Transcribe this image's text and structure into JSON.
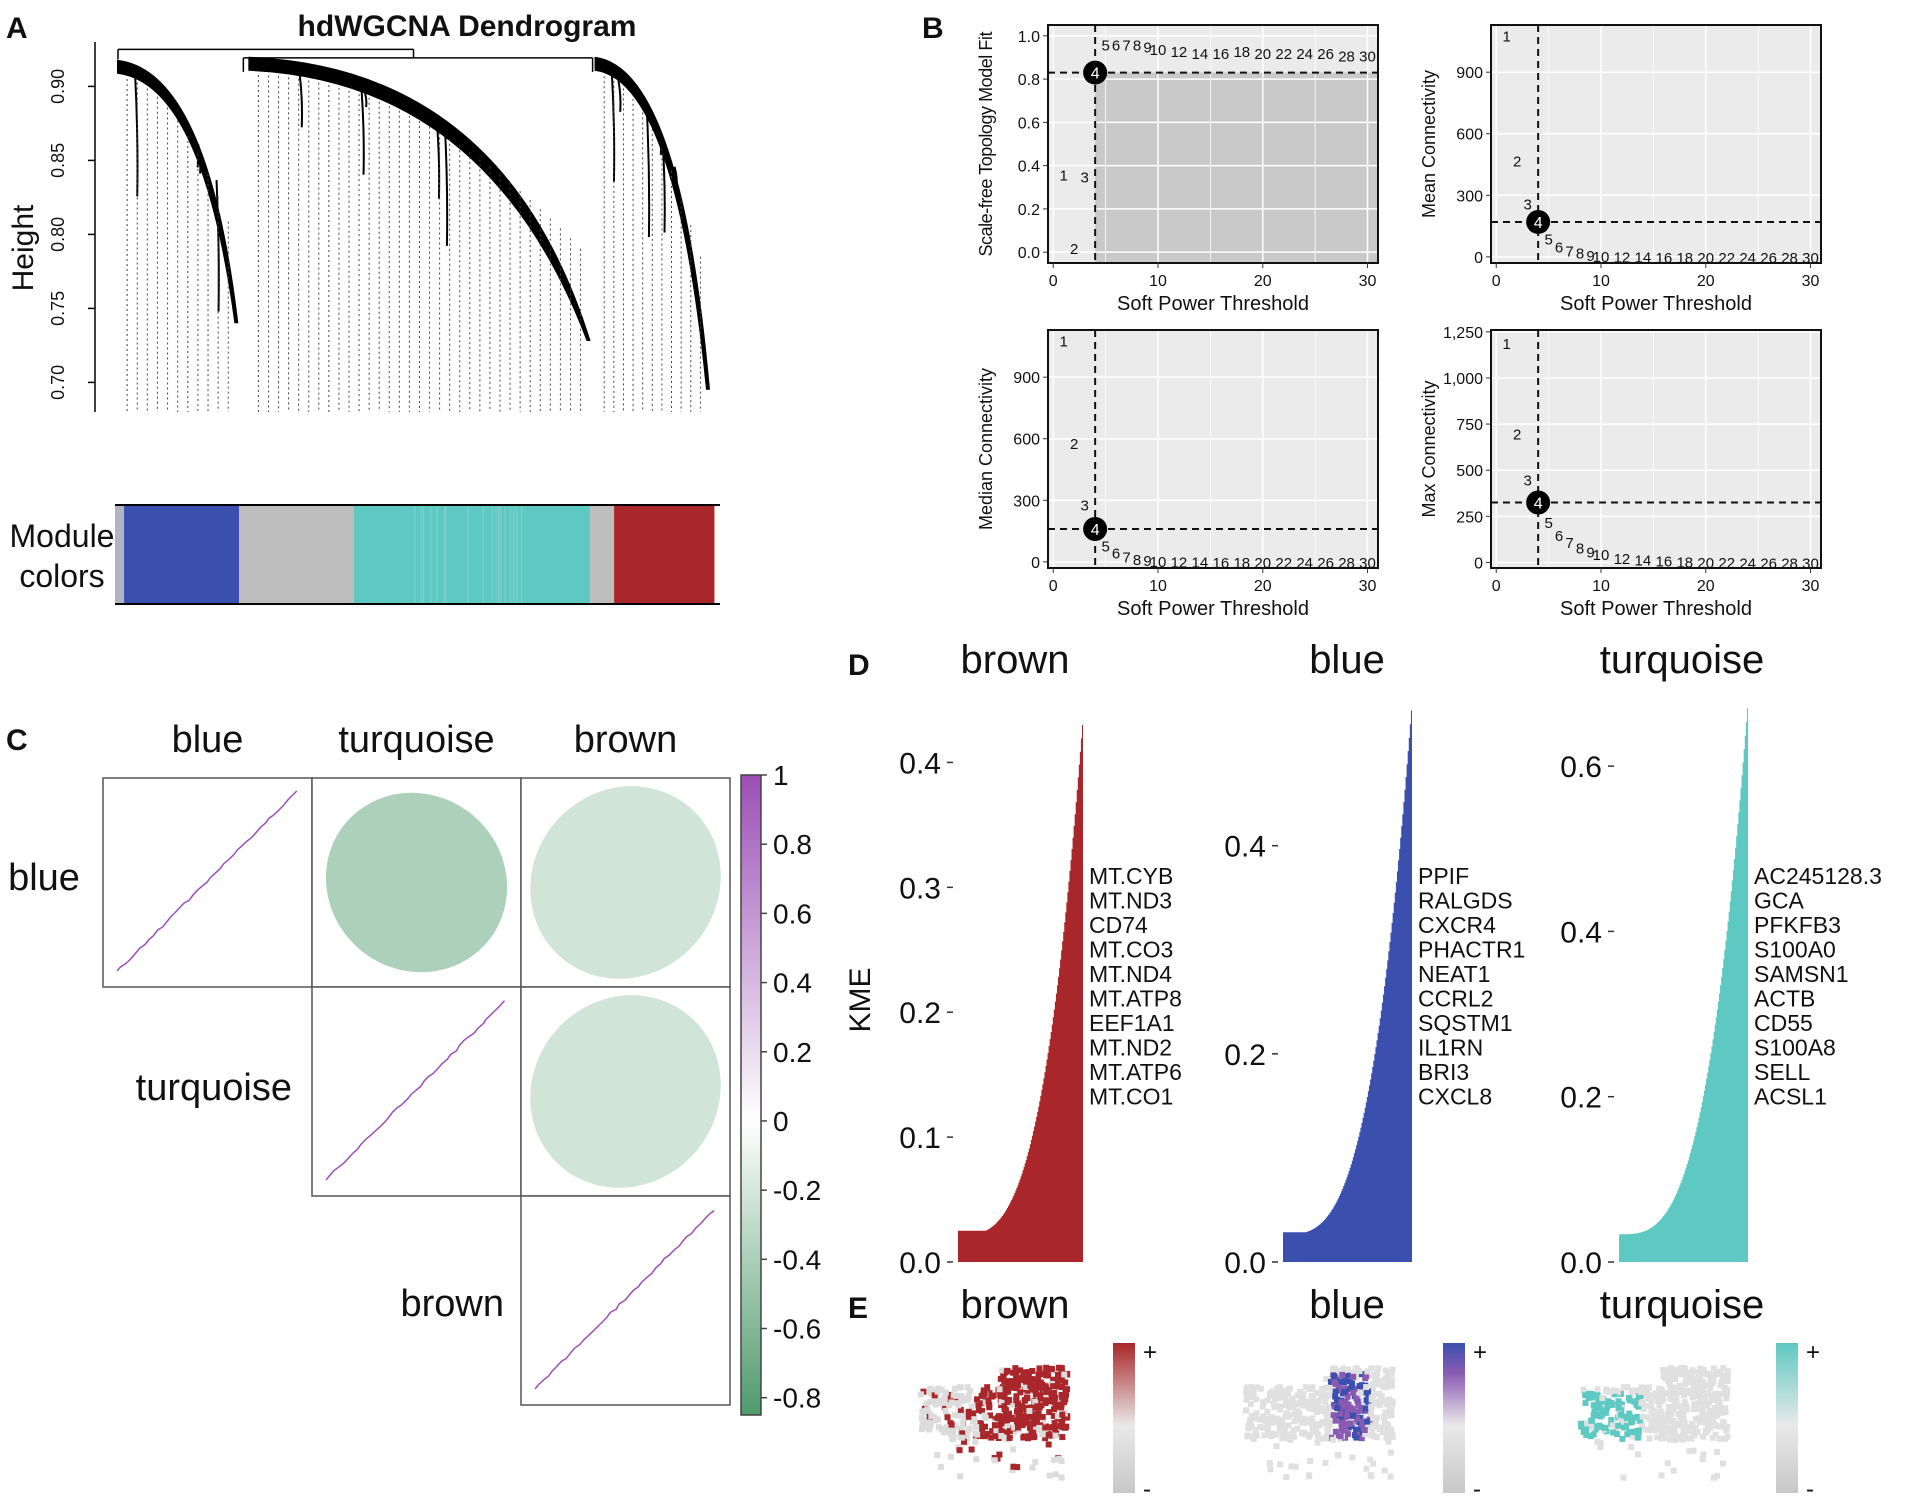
{
  "figure_caption": "",
  "chart_data": [
    {
      "panel": "A",
      "type": "dendrogram",
      "title": "hdWGCNA Dendrogram",
      "ylabel": "Height",
      "yticks": [
        "0.90",
        "0.85",
        "0.80",
        "0.75",
        "0.70"
      ],
      "ytick_values": [
        0.9,
        0.85,
        0.8,
        0.75,
        0.7
      ],
      "ylim": [
        0.68,
        0.93
      ],
      "color_bar_label_line1": "Module",
      "color_bar_label_line2": "colors",
      "module_segments": [
        {
          "color": "#b3b3c4",
          "fraction": 0.015
        },
        {
          "color": "#3a4fae",
          "fraction": 0.19
        },
        {
          "color": "#bebebe",
          "fraction": 0.19
        },
        {
          "color": "#5ec9c2",
          "fraction": 0.39
        },
        {
          "color": "#bebebe",
          "fraction": 0.04
        },
        {
          "color": "#a9272a",
          "fraction": 0.165
        }
      ],
      "clusters": [
        {
          "start": 0.0,
          "end": 0.21,
          "top": 0.918,
          "bottom": 0.74
        },
        {
          "start": 0.22,
          "end": 0.8,
          "top": 0.92,
          "bottom": 0.728
        },
        {
          "start": 0.8,
          "end": 1.0,
          "top": 0.92,
          "bottom": 0.695
        }
      ]
    },
    {
      "panel": "B",
      "type": "scatter-grid",
      "xlabel": "Soft Power Threshold",
      "xticks": [
        "0",
        "10",
        "20",
        "30"
      ],
      "xlim": [
        -0.5,
        31
      ],
      "selected_power": "4",
      "subplots": [
        {
          "ylabel": "Scale-free Topology Model Fit",
          "ylim": [
            -0.05,
            1.05
          ],
          "yticks": [
            "0.0",
            "0.2",
            "0.4",
            "0.6",
            "0.8",
            "1.0"
          ],
          "ytick_values": [
            0,
            0.2,
            0.4,
            0.6,
            0.8,
            1.0
          ],
          "hline": 0.83,
          "shade_below": 0.83,
          "points": [
            {
              "label": "1",
              "x": 1,
              "y": 0.36
            },
            {
              "label": "2",
              "x": 2,
              "y": 0.02
            },
            {
              "label": "3",
              "x": 3,
              "y": 0.35
            },
            {
              "label": "4",
              "x": 4,
              "y": 0.83
            },
            {
              "label": "5",
              "x": 5,
              "y": 0.96
            },
            {
              "label": "6",
              "x": 6,
              "y": 0.96
            },
            {
              "label": "7",
              "x": 7,
              "y": 0.96
            },
            {
              "label": "8",
              "x": 8,
              "y": 0.96
            },
            {
              "label": "9",
              "x": 9,
              "y": 0.95
            },
            {
              "label": "10",
              "x": 10,
              "y": 0.94
            },
            {
              "label": "12",
              "x": 12,
              "y": 0.93
            },
            {
              "label": "14",
              "x": 14,
              "y": 0.92
            },
            {
              "label": "16",
              "x": 16,
              "y": 0.92
            },
            {
              "label": "18",
              "x": 18,
              "y": 0.93
            },
            {
              "label": "20",
              "x": 20,
              "y": 0.92
            },
            {
              "label": "22",
              "x": 22,
              "y": 0.92
            },
            {
              "label": "24",
              "x": 24,
              "y": 0.92
            },
            {
              "label": "26",
              "x": 26,
              "y": 0.92
            },
            {
              "label": "28",
              "x": 28,
              "y": 0.91
            },
            {
              "label": "30",
              "x": 30,
              "y": 0.91
            }
          ]
        },
        {
          "ylabel": "Mean Connectivity",
          "ylim": [
            -30,
            1130
          ],
          "yticks": [
            "0",
            "300",
            "600",
            "900"
          ],
          "ytick_values": [
            0,
            300,
            600,
            900
          ],
          "hline": 170,
          "points": [
            {
              "label": "1",
              "x": 1,
              "y": 1080
            },
            {
              "label": "2",
              "x": 2,
              "y": 470
            },
            {
              "label": "3",
              "x": 3,
              "y": 260
            },
            {
              "label": "4",
              "x": 4,
              "y": 170
            },
            {
              "label": "5",
              "x": 5,
              "y": 90
            },
            {
              "label": "6",
              "x": 6,
              "y": 50
            },
            {
              "label": "7",
              "x": 7,
              "y": 30
            },
            {
              "label": "8",
              "x": 8,
              "y": 20
            },
            {
              "label": "9",
              "x": 9,
              "y": 10
            },
            {
              "label": "10",
              "x": 10,
              "y": 5
            },
            {
              "label": "12",
              "x": 12,
              "y": 2
            },
            {
              "label": "14",
              "x": 14,
              "y": 1
            },
            {
              "label": "16",
              "x": 16,
              "y": 0
            },
            {
              "label": "18",
              "x": 18,
              "y": 0
            },
            {
              "label": "20",
              "x": 20,
              "y": 0
            },
            {
              "label": "22",
              "x": 22,
              "y": 0
            },
            {
              "label": "24",
              "x": 24,
              "y": 0
            },
            {
              "label": "26",
              "x": 26,
              "y": 0
            },
            {
              "label": "28",
              "x": 28,
              "y": 0
            },
            {
              "label": "30",
              "x": 30,
              "y": 0
            }
          ]
        },
        {
          "ylabel": "Median Connectivity",
          "ylim": [
            -30,
            1130
          ],
          "yticks": [
            "0",
            "300",
            "600",
            "900"
          ],
          "ytick_values": [
            0,
            300,
            600,
            900
          ],
          "hline": 160,
          "points": [
            {
              "label": "1",
              "x": 1,
              "y": 1080
            },
            {
              "label": "2",
              "x": 2,
              "y": 580
            },
            {
              "label": "3",
              "x": 3,
              "y": 280
            },
            {
              "label": "4",
              "x": 4,
              "y": 160
            },
            {
              "label": "5",
              "x": 5,
              "y": 80
            },
            {
              "label": "6",
              "x": 6,
              "y": 45
            },
            {
              "label": "7",
              "x": 7,
              "y": 25
            },
            {
              "label": "8",
              "x": 8,
              "y": 15
            },
            {
              "label": "9",
              "x": 9,
              "y": 8
            },
            {
              "label": "10",
              "x": 10,
              "y": 4
            },
            {
              "label": "12",
              "x": 12,
              "y": 2
            },
            {
              "label": "14",
              "x": 14,
              "y": 1
            },
            {
              "label": "16",
              "x": 16,
              "y": 0
            },
            {
              "label": "18",
              "x": 18,
              "y": 0
            },
            {
              "label": "20",
              "x": 20,
              "y": 0
            },
            {
              "label": "22",
              "x": 22,
              "y": 0
            },
            {
              "label": "24",
              "x": 24,
              "y": 0
            },
            {
              "label": "26",
              "x": 26,
              "y": 0
            },
            {
              "label": "28",
              "x": 28,
              "y": 0
            },
            {
              "label": "30",
              "x": 30,
              "y": 0
            }
          ]
        },
        {
          "ylabel": "Max Connectivity",
          "ylim": [
            -30,
            1260
          ],
          "yticks": [
            "0",
            "250",
            "500",
            "750",
            "1,000",
            "1,250"
          ],
          "ytick_values": [
            0,
            250,
            500,
            750,
            1000,
            1250
          ],
          "hline": 325,
          "points": [
            {
              "label": "1",
              "x": 1,
              "y": 1190
            },
            {
              "label": "2",
              "x": 2,
              "y": 700
            },
            {
              "label": "3",
              "x": 3,
              "y": 450
            },
            {
              "label": "4",
              "x": 4,
              "y": 325
            },
            {
              "label": "5",
              "x": 5,
              "y": 220
            },
            {
              "label": "6",
              "x": 6,
              "y": 150
            },
            {
              "label": "7",
              "x": 7,
              "y": 110
            },
            {
              "label": "8",
              "x": 8,
              "y": 80
            },
            {
              "label": "9",
              "x": 9,
              "y": 60
            },
            {
              "label": "10",
              "x": 10,
              "y": 45
            },
            {
              "label": "12",
              "x": 12,
              "y": 25
            },
            {
              "label": "14",
              "x": 14,
              "y": 15
            },
            {
              "label": "16",
              "x": 16,
              "y": 10
            },
            {
              "label": "18",
              "x": 18,
              "y": 5
            },
            {
              "label": "20",
              "x": 20,
              "y": 3
            },
            {
              "label": "22",
              "x": 22,
              "y": 2
            },
            {
              "label": "24",
              "x": 24,
              "y": 1
            },
            {
              "label": "26",
              "x": 26,
              "y": 0
            },
            {
              "label": "28",
              "x": 28,
              "y": 0
            },
            {
              "label": "30",
              "x": 30,
              "y": 0
            }
          ]
        }
      ]
    },
    {
      "panel": "C",
      "type": "correlogram",
      "modules": [
        "blue",
        "turquoise",
        "brown"
      ],
      "correlations": [
        [
          1,
          -0.5,
          -0.2
        ],
        [
          -0.5,
          1,
          -0.2
        ],
        [
          -0.2,
          -0.2,
          1
        ]
      ],
      "colorbar_ticks": [
        "1",
        "0.8",
        "0.6",
        "0.4",
        "0.2",
        "0",
        "-0.2",
        "-0.4",
        "-0.6",
        "-0.8"
      ],
      "colorbar_values": [
        1,
        0.8,
        0.6,
        0.4,
        0.2,
        0,
        -0.2,
        -0.4,
        -0.6,
        -0.8
      ],
      "colorbar_range": [
        -0.85,
        1
      ],
      "positive_color": "#9b4fb5",
      "negative_color": "#4f9a6c"
    },
    {
      "panel": "D",
      "type": "bar",
      "ylabel": "KME",
      "modules": [
        {
          "name": "brown",
          "color": "#a9272a",
          "max": 0.43,
          "yticks": [
            "0.0",
            "0.1",
            "0.2",
            "0.3",
            "0.4"
          ],
          "ytick_values": [
            0,
            0.1,
            0.2,
            0.3,
            0.4
          ],
          "ylim": [
            0,
            0.45
          ],
          "top_genes": [
            "MT.CYB",
            "MT.ND3",
            "CD74",
            "MT.CO3",
            "MT.ND4",
            "MT.ATP8",
            "EEF1A1",
            "MT.ND2",
            "MT.ATP6",
            "MT.CO1"
          ]
        },
        {
          "name": "blue",
          "color": "#3a4fae",
          "max": 0.53,
          "yticks": [
            "0.0",
            "0.2",
            "0.4"
          ],
          "ytick_values": [
            0,
            0.2,
            0.4
          ],
          "ylim": [
            0,
            0.54
          ],
          "top_genes": [
            "PPIF",
            "RALGDS",
            "CXCR4",
            "PHACTR1",
            "NEAT1",
            "CCRL2",
            "SQSTM1",
            "IL1RN",
            "BRI3",
            "CXCL8"
          ]
        },
        {
          "name": "turquoise",
          "color": "#5ec9c2",
          "max": 0.67,
          "yticks": [
            "0.0",
            "0.2",
            "0.4",
            "0.6"
          ],
          "ytick_values": [
            0,
            0.2,
            0.4,
            0.6
          ],
          "ylim": [
            0,
            0.68
          ],
          "top_genes": [
            "AC245128.3",
            "GCA",
            "PFKFB3",
            "S100A0",
            "SAMSN1",
            "ACTB",
            "CD55",
            "S100A8",
            "SELL",
            "ACSL1"
          ]
        }
      ]
    },
    {
      "panel": "E",
      "type": "scatter",
      "description": "UMAP feature plots of module scores",
      "modules": [
        {
          "name": "brown",
          "color": "#a9272a"
        },
        {
          "name": "blue",
          "color": "#3a4fae"
        },
        {
          "name": "turquoise",
          "color": "#5ec9c2"
        }
      ],
      "legend_high": "+",
      "legend_low": "-"
    }
  ],
  "panel_labels": [
    "A",
    "B",
    "C",
    "D",
    "E"
  ]
}
